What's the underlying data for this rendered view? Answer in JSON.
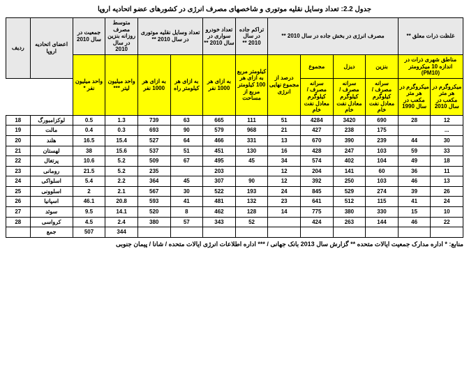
{
  "title": "جدول 2.2: تعداد وسایل نقلیه موتوری و شاخصهای مصرف انرژی در کشورهای عضو اتحادیه اروپا",
  "footer": "منابع: * اداره مدارک جمعیت ایالات متحده ** گزارش سال 2013 بانک جهانی / *** اداره اطلاعات انرژی ایالات متحده / شانا / پیمان جنوبی",
  "header": {
    "row1": {
      "pollution": "غلظت ذرات معلق **",
      "energy": "مصرف انرژی در بخش جاده در سال 2010 **",
      "density": "تراکم جاده در سال 2010 **",
      "cars": "تعداد خودرو سواری در سال 2010 **",
      "vehicles": "تعداد وسایل نقلیه موتوری در سال 2010 **",
      "fuel": "متوسط مصرف روزانه بنزین در سال 2010",
      "pop": "جمعیت در سال 2010"
    },
    "row2": {
      "pm10": "مناطق شهری ذرات در اندازه 10 میکرومتر (PM10)",
      "benzin": "بنزین",
      "diesel": "دیزل",
      "total": "مجموع",
      "km100": "کیلومتر مربع به ازای هر 100 کیلومتر مربع از مساحت",
      "per1000p": "به ازای هر 1000 نفر",
      "perkmr": "به ازای هر کیلومتر راه",
      "per1000r": "به ازای هر 1000 نفر",
      "members": "اعضای اتحادیه اروپا",
      "rownum": "ردیف"
    },
    "row3": {
      "c1": "میکروگرم در هر متر مکعب در سال 2010",
      "c2": "میکروگرم در هر متر مکعب در سال 1990",
      "c3": "سرانه مصرف / کیلوگرم معادل نفت خام",
      "c4": "سرانه مصرف / کیلوگرم معادل نفت خام",
      "c5": "سرانه مصرف / کیلوگرم معادل نفت خام",
      "c6": "درصد از مجموع نهایی انرژی",
      "c7": "واحد میلیون لیتر ***",
      "c8": "واحد میلیون نفر *"
    }
  },
  "rows": [
    {
      "n": "18",
      "country": "لوکزامبورگ",
      "pop": "0.5",
      "fuel": "1.3",
      "v1000": "739",
      "vkm": "63",
      "c1000": "665",
      "dens": "111",
      "epc": "51",
      "etot": "4284",
      "edz": "3420",
      "ebz": "690",
      "pm90": "28",
      "pm10": "12"
    },
    {
      "n": "19",
      "country": "مالت",
      "pop": "0.4",
      "fuel": "0.3",
      "v1000": "693",
      "vkm": "90",
      "c1000": "579",
      "dens": "968",
      "epc": "21",
      "etot": "427",
      "edz": "238",
      "ebz": "175",
      "pm90": "",
      "pm10": "..."
    },
    {
      "n": "20",
      "country": "هلند",
      "pop": "16.5",
      "fuel": "15.4",
      "v1000": "527",
      "vkm": "64",
      "c1000": "466",
      "dens": "331",
      "epc": "13",
      "etot": "670",
      "edz": "390",
      "ebz": "239",
      "pm90": "44",
      "pm10": "30"
    },
    {
      "n": "21",
      "country": "لهستان",
      "pop": "38",
      "fuel": "15.6",
      "v1000": "537",
      "vkm": "51",
      "c1000": "451",
      "dens": "130",
      "epc": "16",
      "etot": "428",
      "edz": "247",
      "ebz": "103",
      "pm90": "59",
      "pm10": "33"
    },
    {
      "n": "22",
      "country": "پرتغال",
      "pop": "10.6",
      "fuel": "5.2",
      "v1000": "509",
      "vkm": "67",
      "c1000": "495",
      "dens": "45",
      "epc": "34",
      "etot": "574",
      "edz": "402",
      "ebz": "104",
      "pm90": "49",
      "pm10": "18"
    },
    {
      "n": "23",
      "country": "رومانی",
      "pop": "21.5",
      "fuel": "5.2",
      "v1000": "235",
      "vkm": "",
      "c1000": "203",
      "dens": "",
      "epc": "12",
      "etot": "204",
      "edz": "141",
      "ebz": "60",
      "pm90": "36",
      "pm10": "11"
    },
    {
      "n": "24",
      "country": "اسلواکی",
      "pop": "5.4",
      "fuel": "2.2",
      "v1000": "364",
      "vkm": "45",
      "c1000": "307",
      "dens": "90",
      "epc": "12",
      "etot": "392",
      "edz": "250",
      "ebz": "103",
      "pm90": "46",
      "pm10": "13"
    },
    {
      "n": "25",
      "country": "اسلوونی",
      "pop": "2",
      "fuel": "2.1",
      "v1000": "567",
      "vkm": "30",
      "c1000": "522",
      "dens": "193",
      "epc": "24",
      "etot": "845",
      "edz": "529",
      "ebz": "274",
      "pm90": "39",
      "pm10": "26"
    },
    {
      "n": "26",
      "country": "اسپانیا",
      "pop": "46.1",
      "fuel": "20.8",
      "v1000": "593",
      "vkm": "41",
      "c1000": "481",
      "dens": "132",
      "epc": "23",
      "etot": "641",
      "edz": "512",
      "ebz": "115",
      "pm90": "41",
      "pm10": "24"
    },
    {
      "n": "27",
      "country": "سوئد",
      "pop": "9.5",
      "fuel": "14.1",
      "v1000": "520",
      "vkm": "8",
      "c1000": "462",
      "dens": "128",
      "epc": "14",
      "etot": "775",
      "edz": "380",
      "ebz": "330",
      "pm90": "15",
      "pm10": "10"
    },
    {
      "n": "28",
      "country": "کرواسی",
      "pop": "4.5",
      "fuel": "2.4",
      "v1000": "380",
      "vkm": "57",
      "c1000": "343",
      "dens": "52",
      "epc": "",
      "etot": "424",
      "edz": "263",
      "ebz": "144",
      "pm90": "46",
      "pm10": "22"
    },
    {
      "n": "",
      "country": "جمع",
      "pop": "507",
      "fuel": "344",
      "v1000": "",
      "vkm": "",
      "c1000": "",
      "dens": "",
      "epc": "",
      "etot": "",
      "edz": "",
      "ebz": "",
      "pm90": "",
      "pm10": ""
    }
  ]
}
